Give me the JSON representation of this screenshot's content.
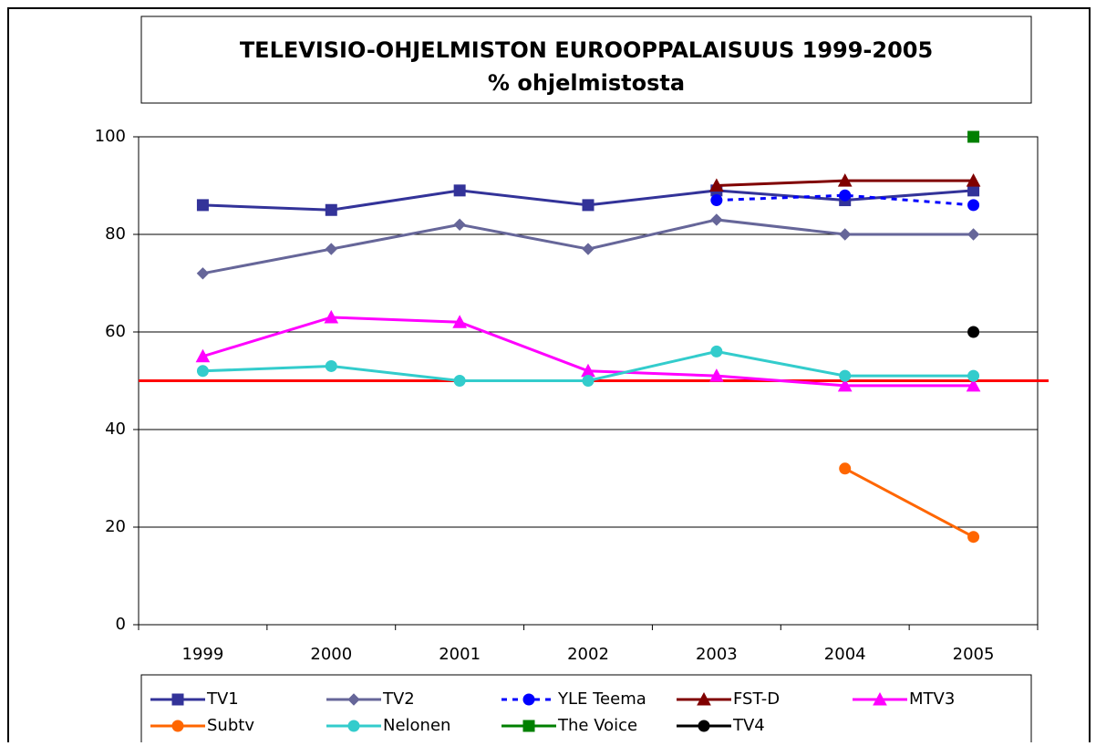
{
  "chart_data": {
    "type": "line",
    "title": "TELEVISIO-OHJELMISTON EUROOPPALAISUUS 1999-2005",
    "subtitle": "% ohjelmistosta",
    "categories": [
      "1999",
      "2000",
      "2001",
      "2002",
      "2003",
      "2004",
      "2005"
    ],
    "series": [
      {
        "name": "TV1",
        "color": "#333399",
        "marker": "square",
        "dash": false,
        "values": [
          86,
          85,
          89,
          86,
          89,
          87,
          89
        ]
      },
      {
        "name": "TV2",
        "color": "#666699",
        "marker": "diamond",
        "dash": false,
        "values": [
          72,
          77,
          82,
          77,
          83,
          80,
          80
        ]
      },
      {
        "name": "YLE Teema",
        "color": "#0000ff",
        "marker": "circle",
        "dash": true,
        "values": [
          null,
          null,
          null,
          null,
          87,
          88,
          86
        ]
      },
      {
        "name": "FST-D",
        "color": "#800000",
        "marker": "triangle",
        "dash": false,
        "values": [
          null,
          null,
          null,
          null,
          90,
          91,
          91
        ]
      },
      {
        "name": "MTV3",
        "color": "#ff00ff",
        "marker": "triangle",
        "dash": false,
        "values": [
          55,
          63,
          62,
          52,
          51,
          49,
          49
        ]
      },
      {
        "name": "Subtv",
        "color": "#ff6600",
        "marker": "circle",
        "dash": false,
        "values": [
          null,
          null,
          null,
          null,
          null,
          32,
          18
        ]
      },
      {
        "name": "Nelonen",
        "color": "#33cccc",
        "marker": "circle",
        "dash": false,
        "values": [
          52,
          53,
          50,
          50,
          56,
          51,
          51
        ]
      },
      {
        "name": "The Voice",
        "color": "#008000",
        "marker": "square",
        "dash": false,
        "values": [
          null,
          null,
          null,
          null,
          null,
          null,
          100
        ]
      },
      {
        "name": "TV4",
        "color": "#000000",
        "marker": "circle",
        "dash": false,
        "values": [
          null,
          null,
          null,
          null,
          null,
          null,
          60
        ]
      }
    ],
    "reference_line": {
      "value": 50,
      "color": "#ff0000"
    },
    "ylim": [
      0,
      100
    ],
    "yticks": [
      0,
      20,
      40,
      60,
      80,
      100
    ],
    "grid": true,
    "legend": "bottom"
  }
}
